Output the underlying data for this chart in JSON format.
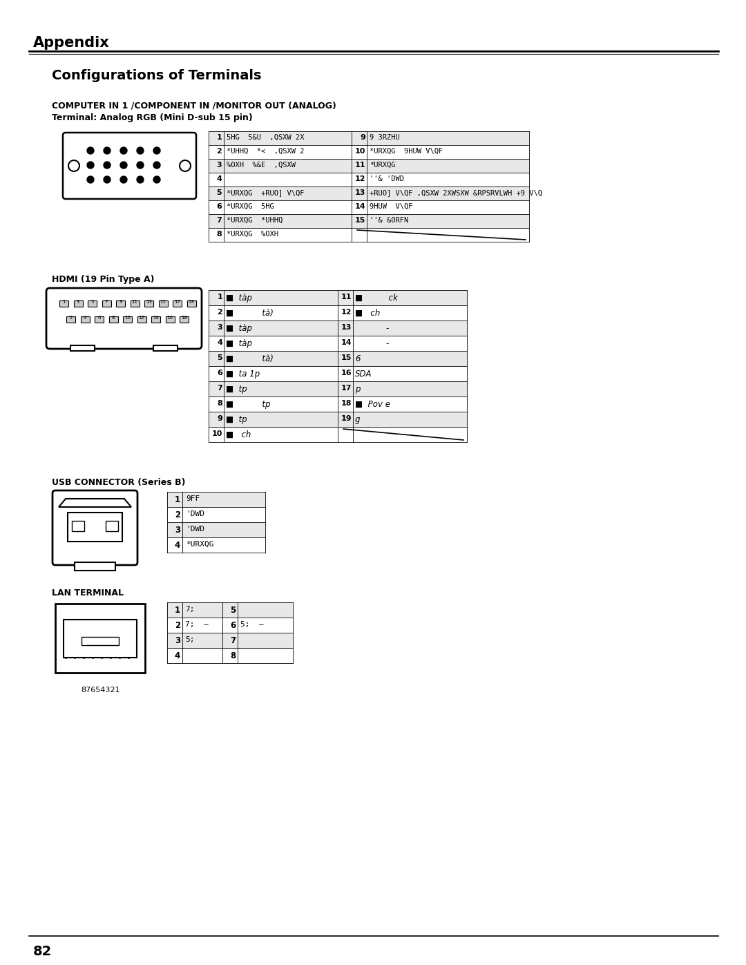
{
  "title": "Appendix",
  "section_title": "Configurations of Terminals",
  "bg_color": "#ffffff",
  "analog_title1": "COMPUTER IN 1 /COMPONENT IN /MONITOR OUT (ANALOG)",
  "analog_title2": "Terminal: Analog RGB (Mini D-sub 15 pin)",
  "analog_rows_left": [
    [
      "1",
      "5HG  5&U  ,QSXW 2X"
    ],
    [
      "2",
      "*UHHQ  *<  ,QSXW 2"
    ],
    [
      "3",
      "%OXH  %&E  ,QSXW"
    ],
    [
      "4",
      ""
    ],
    [
      "5",
      "*URXQG  +RUO] V\\QF"
    ],
    [
      "6",
      "*URXQG  5HG"
    ],
    [
      "7",
      "*URXQG  *UHHQ"
    ],
    [
      "8",
      "*URXQG  %OXH"
    ]
  ],
  "analog_rows_right": [
    [
      "9",
      "9 3RZHU"
    ],
    [
      "10",
      "*URXQG  9HUW V\\QF"
    ],
    [
      "11",
      "*URXQG"
    ],
    [
      "12",
      "''& 'DWD"
    ],
    [
      "13",
      "+RUO] V\\QF ,QSXW 2XWSXW &RPSRVLWH +9 V\\Q"
    ],
    [
      "14",
      "9HUW  V\\QF"
    ],
    [
      "15",
      "''& &ORFN"
    ],
    [
      "",
      ""
    ]
  ],
  "hdmi_title": "HDMI (19 Pin Type A)",
  "hdmi_data": [
    [
      "1",
      "■  tàp",
      "11",
      "■          ck"
    ],
    [
      "2",
      "■           tà)",
      "12",
      "■   ch"
    ],
    [
      "3",
      "■  tàp",
      "13",
      "            -"
    ],
    [
      "4",
      "■  tàp",
      "14",
      "            -"
    ],
    [
      "5",
      "■           tà)",
      "15",
      "6"
    ],
    [
      "6",
      "■  ta 1p",
      "16",
      "SDA"
    ],
    [
      "7",
      "■  tp",
      "17",
      "p"
    ],
    [
      "8",
      "■           tp",
      "18",
      "■  Pov e"
    ],
    [
      "9",
      "■  tp",
      "19",
      "g"
    ],
    [
      "10",
      "■   ch",
      "",
      ""
    ]
  ],
  "usb_title": "USB CONNECTOR (Series B)",
  "usb_rows": [
    [
      "1",
      "9FF"
    ],
    [
      "2",
      "'DWD"
    ],
    [
      "3",
      "'DWD"
    ],
    [
      "4",
      "*URXQG"
    ]
  ],
  "lan_title": "LAN TERMINAL",
  "lan_data": [
    [
      "1",
      "7;",
      "5",
      ""
    ],
    [
      "2",
      "7;  –",
      "6",
      "5;  –"
    ],
    [
      "3",
      "5;",
      "7",
      ""
    ],
    [
      "4",
      "",
      "8",
      ""
    ]
  ],
  "lan_numbers": "87654321",
  "page_number": "82"
}
